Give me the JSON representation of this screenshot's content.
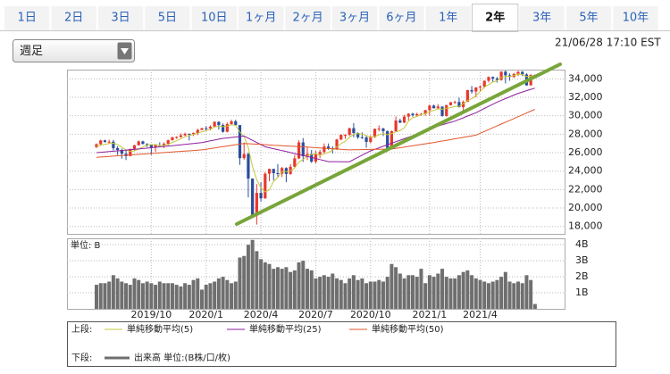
{
  "tabs": [
    "1日",
    "2日",
    "3日",
    "5日",
    "10日",
    "1ヶ月",
    "2ヶ月",
    "3ヶ月",
    "6ヶ月",
    "1年",
    "2年",
    "3年",
    "5年",
    "10年"
  ],
  "active_tab": 10,
  "dropdown": "週足",
  "timestamp": "21/06/28 17:10 EST",
  "chart_data": [
    {
      "type": "candlestick",
      "legend_label": "上段:",
      "up_color": "#e8382d",
      "down_color": "#2a4d9c",
      "grid": true,
      "ylim": [
        17200,
        35000
      ],
      "yticks": [
        {
          "value": 18000,
          "label": "18,000"
        },
        {
          "value": 20000,
          "label": "20,000"
        },
        {
          "value": 22000,
          "label": "22,000"
        },
        {
          "value": 24000,
          "label": "24,000"
        },
        {
          "value": 26000,
          "label": "26,000"
        },
        {
          "value": 28000,
          "label": "28,000"
        },
        {
          "value": 30000,
          "label": "30,000"
        },
        {
          "value": 32000,
          "label": "32,000"
        },
        {
          "value": 34000,
          "label": "34,000"
        }
      ],
      "open": [
        26600,
        26920,
        27330,
        27150,
        27190,
        26490,
        26290,
        25890,
        25630,
        26400,
        26800,
        27220,
        26940,
        26820,
        26570,
        26820,
        26770,
        26960,
        27350,
        27680,
        27690,
        27880,
        28050,
        28020,
        28140,
        28460,
        28650,
        28630,
        28820,
        29350,
        28990,
        28260,
        29100,
        29400,
        28990,
        25410,
        25860,
        23190,
        19170,
        21640,
        21050,
        23720,
        24240,
        23780,
        23720,
        24330,
        23690,
        24470,
        25380,
        27110,
        25610,
        25870,
        25020,
        25830,
        26080,
        26670,
        26470,
        26430,
        27430,
        27930,
        27930,
        28650,
        28130,
        27670,
        27660,
        27170,
        27680,
        28590,
        28610,
        28340,
        26500,
        28320,
        29480,
        29260,
        29910,
        30220,
        30050,
        30180,
        30200,
        30610,
        31100,
        30810,
        31000,
        29980,
        31150,
        31460,
        31490,
        30930,
        31500,
        32780,
        32630,
        33070,
        33150,
        33800,
        34200,
        34040,
        33880,
        34780,
        34380,
        34210,
        34530,
        34760,
        34480,
        33290,
        34430
      ],
      "high": [
        27010,
        27400,
        27400,
        27400,
        27390,
        26700,
        26450,
        26270,
        26450,
        26850,
        27310,
        27300,
        27020,
        26900,
        26930,
        27120,
        27120,
        27400,
        27700,
        27780,
        28090,
        28170,
        28060,
        28180,
        28600,
        28700,
        28870,
        28960,
        29370,
        29370,
        29170,
        29280,
        29570,
        29570,
        28990,
        27100,
        26000,
        23200,
        22600,
        22800,
        23900,
        24260,
        24240,
        24760,
        24450,
        24420,
        24750,
        25760,
        27340,
        27580,
        26610,
        26300,
        26200,
        26300,
        27000,
        27000,
        26700,
        27500,
        28000,
        28000,
        28700,
        29200,
        28200,
        28200,
        27800,
        27880,
        28600,
        28950,
        28700,
        28400,
        28400,
        29930,
        29680,
        30100,
        30270,
        30320,
        30330,
        30300,
        30640,
        31190,
        31200,
        31270,
        31000,
        31200,
        31500,
        31640,
        31960,
        31650,
        32800,
        33230,
        33100,
        33300,
        33810,
        34260,
        34260,
        34200,
        34820,
        34900,
        34600,
        34650,
        34850,
        34850,
        34600,
        34500,
        34450
      ],
      "low": [
        26500,
        26800,
        27100,
        27000,
        26250,
        25750,
        25340,
        25200,
        25600,
        26200,
        26800,
        26900,
        26600,
        25750,
        26100,
        26700,
        26500,
        26800,
        27300,
        27500,
        27650,
        27800,
        27320,
        27800,
        27900,
        28450,
        28380,
        28420,
        28800,
        28500,
        28170,
        28200,
        29000,
        28900,
        24680,
        25230,
        21150,
        18920,
        18210,
        20700,
        21000,
        22900,
        23000,
        23400,
        23350,
        22800,
        23600,
        24400,
        25300,
        25000,
        25200,
        24900,
        24850,
        25400,
        25870,
        26300,
        25900,
        26300,
        27350,
        27500,
        27800,
        27660,
        27500,
        27500,
        26540,
        27000,
        27600,
        28300,
        27800,
        26140,
        26400,
        28300,
        29200,
        29200,
        29500,
        29900,
        29900,
        30000,
        30000,
        30000,
        30800,
        30700,
        29900,
        29900,
        31100,
        31300,
        30900,
        30550,
        31500,
        32400,
        32000,
        32600,
        33000,
        33600,
        33700,
        33600,
        33800,
        33500,
        33800,
        34100,
        34300,
        34300,
        33270,
        33300,
        34200
      ],
      "close": [
        26920,
        27330,
        27150,
        27190,
        26490,
        26290,
        25890,
        25630,
        26400,
        26800,
        27220,
        26940,
        26820,
        26570,
        26820,
        26770,
        26960,
        27350,
        27680,
        27690,
        27880,
        28050,
        28020,
        28140,
        28460,
        28650,
        28630,
        28820,
        29350,
        28990,
        28260,
        29100,
        29400,
        28990,
        25410,
        25860,
        23190,
        19170,
        21640,
        21050,
        23720,
        24240,
        23780,
        23720,
        24330,
        23690,
        24470,
        25380,
        27110,
        25610,
        25870,
        25020,
        25830,
        26080,
        26670,
        26470,
        26430,
        27430,
        27930,
        27930,
        28650,
        28130,
        27670,
        27660,
        27170,
        27680,
        28590,
        28610,
        28340,
        26500,
        28320,
        29480,
        29260,
        29910,
        30220,
        30050,
        30180,
        30200,
        30610,
        31100,
        30810,
        31000,
        29980,
        31150,
        31460,
        31490,
        30930,
        31500,
        32780,
        32630,
        33070,
        33150,
        33800,
        34200,
        34040,
        33880,
        34780,
        34380,
        34210,
        34530,
        34760,
        34480,
        33290,
        34430,
        34290
      ],
      "series": [
        {
          "name": "単純移動平均(5)",
          "color": "#c3c83a",
          "values": [
            26700,
            26800,
            26900,
            27000,
            27020,
            26890,
            26600,
            26300,
            26140,
            26200,
            26390,
            26600,
            26840,
            26870,
            26870,
            26780,
            26790,
            26890,
            27120,
            27290,
            27510,
            27730,
            27860,
            27960,
            28110,
            28260,
            28380,
            28540,
            28780,
            28890,
            28810,
            28900,
            29020,
            28950,
            28230,
            27750,
            26570,
            24520,
            23050,
            22180,
            21750,
            21960,
            22890,
            23300,
            23960,
            23950,
            24000,
            24320,
            25000,
            25250,
            25690,
            25800,
            25890,
            25680,
            25890,
            26010,
            26300,
            26620,
            26990,
            27240,
            27670,
            28010,
            28060,
            28010,
            27860,
            27660,
            27750,
            27940,
            28080,
            27940,
            28070,
            28250,
            28380,
            28690,
            29440,
            29780,
            29920,
            30110,
            30250,
            30430,
            30580,
            30740,
            30700,
            30810,
            30880,
            31020,
            31000,
            31310,
            31630,
            31870,
            32180,
            32630,
            33090,
            33370,
            33650,
            33810,
            34140,
            34260,
            34260,
            34360,
            34530,
            34470,
            34250,
            34300,
            34250
          ]
        },
        {
          "name": "単純移動平均(25)",
          "color": "#8e1f9e",
          "values": [
            26000,
            26040,
            26080,
            26120,
            26160,
            26200,
            26240,
            26280,
            26320,
            26360,
            26400,
            26450,
            26490,
            26540,
            26580,
            26630,
            26670,
            26720,
            26760,
            26810,
            26850,
            26900,
            26950,
            27000,
            27050,
            27100,
            27190,
            27280,
            27370,
            27460,
            27550,
            27600,
            27650,
            27700,
            27750,
            27800,
            27570,
            27340,
            27100,
            26870,
            26640,
            26540,
            26430,
            26330,
            26220,
            26120,
            26010,
            25910,
            25800,
            25700,
            25590,
            25480,
            25370,
            25250,
            25140,
            25030,
            25030,
            25030,
            25020,
            25020,
            25020,
            25260,
            25490,
            25730,
            25960,
            26200,
            26360,
            26530,
            26690,
            26860,
            27020,
            27180,
            27350,
            27510,
            27680,
            27840,
            28020,
            28210,
            28390,
            28580,
            28760,
            28890,
            29020,
            29160,
            29290,
            29420,
            29600,
            29780,
            29970,
            30150,
            30330,
            30560,
            30790,
            31020,
            31250,
            31480,
            31670,
            31860,
            32050,
            32240,
            32430,
            32570,
            32720,
            32860,
            33000
          ]
        },
        {
          "name": "単純移動平均(50)",
          "color": "#e2562c",
          "values": [
            25500,
            25530,
            25560,
            25600,
            25630,
            25660,
            25690,
            25720,
            25760,
            25790,
            25820,
            25850,
            25880,
            25920,
            25950,
            25980,
            26010,
            26040,
            26080,
            26110,
            26140,
            26170,
            26200,
            26240,
            26270,
            26300,
            26370,
            26440,
            26510,
            26580,
            26650,
            26720,
            26790,
            26860,
            26930,
            27000,
            26970,
            26950,
            26920,
            26890,
            26870,
            26840,
            26810,
            26790,
            26760,
            26730,
            26710,
            26680,
            26650,
            26630,
            26600,
            26570,
            26540,
            26510,
            26480,
            26450,
            26420,
            26390,
            26360,
            26330,
            26300,
            26310,
            26320,
            26330,
            26340,
            26350,
            26360,
            26370,
            26380,
            26390,
            26400,
            26470,
            26540,
            26610,
            26680,
            26750,
            26820,
            26890,
            26960,
            27030,
            27100,
            27180,
            27260,
            27340,
            27420,
            27500,
            27580,
            27660,
            27740,
            27820,
            27900,
            28100,
            28300,
            28500,
            28700,
            28900,
            29100,
            29300,
            29500,
            29700,
            29900,
            30100,
            30300,
            30500,
            30700
          ]
        }
      ]
    },
    {
      "type": "bar",
      "legend_label": "下段:",
      "unit_label": "単位: B",
      "grid": true,
      "categories": [
        null,
        null,
        null,
        null,
        null,
        null,
        null,
        null,
        null,
        null,
        null,
        null,
        null,
        "2019/10",
        null,
        null,
        null,
        null,
        null,
        null,
        null,
        null,
        null,
        null,
        null,
        null,
        "2020/1",
        null,
        null,
        null,
        null,
        null,
        null,
        null,
        null,
        null,
        null,
        null,
        null,
        "2020/4",
        null,
        null,
        null,
        null,
        null,
        null,
        null,
        null,
        null,
        null,
        null,
        null,
        "2020/7",
        null,
        null,
        null,
        null,
        null,
        null,
        null,
        null,
        null,
        null,
        null,
        null,
        "2020/10",
        null,
        null,
        null,
        null,
        null,
        null,
        null,
        null,
        null,
        null,
        null,
        null,
        null,
        "2021/1",
        null,
        null,
        null,
        null,
        null,
        null,
        null,
        null,
        null,
        null,
        null,
        "2021/4",
        null,
        null,
        null,
        null,
        null,
        null,
        null,
        null,
        null,
        null,
        null,
        null,
        null
      ],
      "ylim": [
        0,
        4.4
      ],
      "yticks": [
        {
          "value": 1,
          "label": "1B"
        },
        {
          "value": 2,
          "label": "2B"
        },
        {
          "value": 3,
          "label": "3B"
        },
        {
          "value": 4,
          "label": "4B"
        }
      ],
      "series": [
        {
          "name": "出来高 単位:(B株/口/枚)",
          "color": "#6f6f6f",
          "values": [
            1.5,
            1.6,
            1.6,
            1.7,
            2.1,
            1.9,
            1.7,
            1.6,
            1.5,
            1.9,
            1.8,
            1.6,
            1.7,
            1.6,
            1.5,
            1.7,
            1.6,
            1.6,
            1.6,
            1.5,
            1.4,
            1.6,
            1.5,
            1.8,
            1.9,
            1.2,
            1.5,
            1.6,
            1.7,
            1.9,
            2.0,
            1.8,
            1.6,
            1.7,
            3.2,
            3.3,
            4.0,
            4.3,
            3.6,
            3.1,
            2.9,
            2.8,
            2.5,
            2.6,
            2.5,
            2.6,
            2.3,
            2.4,
            2.9,
            3.0,
            2.5,
            2.4,
            1.9,
            2.0,
            2.1,
            2.0,
            2.2,
            1.9,
            1.8,
            1.6,
            1.9,
            2.1,
            1.8,
            1.9,
            1.6,
            1.7,
            1.7,
            1.8,
            1.7,
            2.0,
            2.8,
            2.6,
            2.2,
            1.9,
            2.1,
            2.1,
            2.0,
            2.5,
            1.6,
            2.1,
            2.0,
            2.2,
            2.5,
            2.0,
            1.9,
            1.9,
            2.1,
            2.3,
            2.4,
            2.1,
            1.9,
            1.8,
            1.7,
            1.6,
            1.7,
            1.8,
            2.0,
            2.3,
            1.7,
            1.6,
            1.7,
            1.6,
            2.1,
            1.8,
            0.3
          ]
        }
      ]
    }
  ]
}
